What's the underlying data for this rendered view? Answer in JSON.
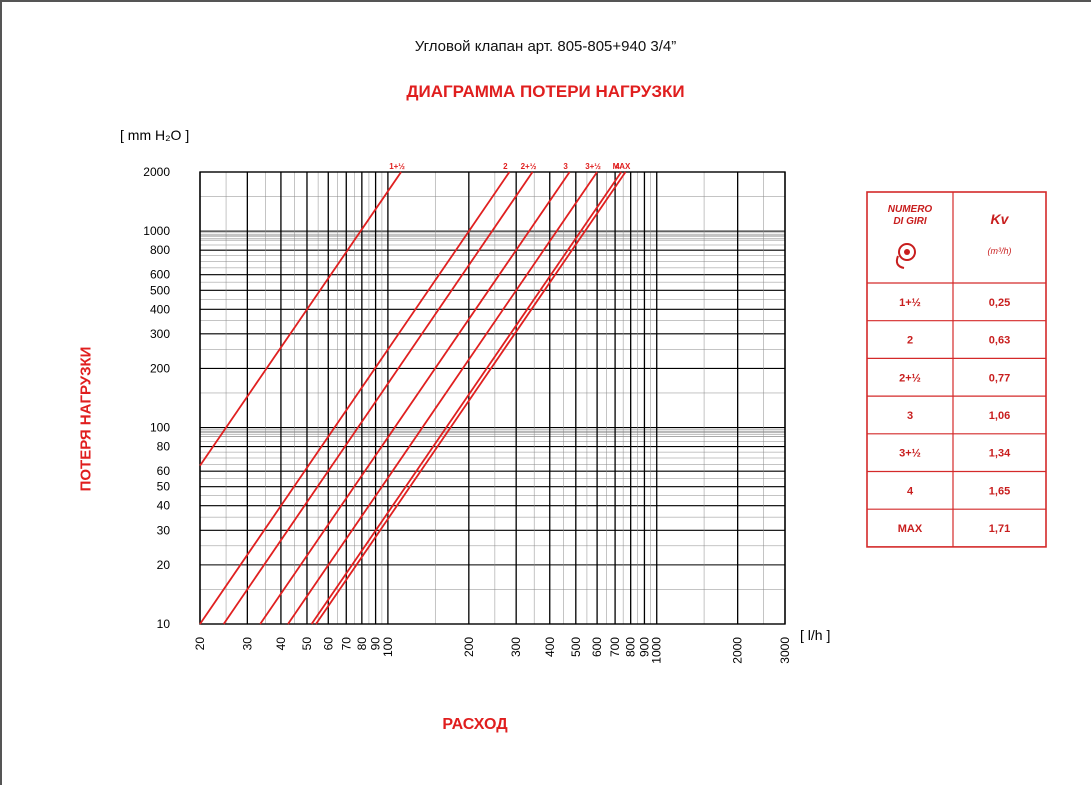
{
  "title": "Угловой клапан арт. 805-805+940 3/4”",
  "subtitle": "ДИАГРАММА ПОТЕРИ НАГРУЗКИ",
  "xlabel": "РАСХОД",
  "ylabel": "ПОТЕРЯ НАГРУЗКИ",
  "colors": {
    "curve": "#e02020",
    "grid": "#000000",
    "table_border": "#d42a2a",
    "table_text": "#c81e1e"
  },
  "chart_data": {
    "type": "line",
    "scale": "log-log",
    "y_unit": "[ mm H₂O ]",
    "x_unit": "[ l/h ]",
    "xlim": [
      20,
      3000
    ],
    "ylim": [
      10,
      2000
    ],
    "x_ticks": [
      "20",
      "30",
      "40",
      "50",
      "60",
      "70",
      "80",
      "90",
      "100",
      "200",
      "300",
      "400",
      "500",
      "600",
      "700",
      "800",
      "900",
      "1000",
      "2000",
      "3000"
    ],
    "y_ticks": [
      "10",
      "20",
      "30",
      "40",
      "50",
      "60",
      "80",
      "100",
      "200",
      "300",
      "400",
      "500",
      "600",
      "800",
      "1000",
      "2000"
    ],
    "series": [
      {
        "name": "1+½",
        "kv": 0.25,
        "points": [
          [
            20,
            64
          ],
          [
            112,
            2000
          ]
        ]
      },
      {
        "name": "2",
        "kv": 0.63,
        "points": [
          [
            20,
            10
          ],
          [
            283,
            2000
          ]
        ]
      },
      {
        "name": "2+½",
        "kv": 0.77,
        "points": [
          [
            24.5,
            10
          ],
          [
            345,
            2000
          ]
        ]
      },
      {
        "name": "3",
        "kv": 1.06,
        "points": [
          [
            33.5,
            10
          ],
          [
            474,
            2000
          ]
        ]
      },
      {
        "name": "3+½",
        "kv": 1.34,
        "points": [
          [
            42.5,
            10
          ],
          [
            600,
            2000
          ]
        ]
      },
      {
        "name": "4",
        "kv": 1.65,
        "points": [
          [
            52,
            10
          ],
          [
            738,
            2000
          ]
        ]
      },
      {
        "name": "MAX",
        "kv": 1.71,
        "points": [
          [
            54,
            10
          ],
          [
            765,
            2000
          ]
        ]
      }
    ],
    "table": {
      "header": {
        "col1": "NUMERO DI GIRI",
        "col2": "Kv",
        "col2_unit": "(m³/h)"
      },
      "rows": [
        {
          "giri": "1+½",
          "kv": "0,25"
        },
        {
          "giri": "2",
          "kv": "0,63"
        },
        {
          "giri": "2+½",
          "kv": "0,77"
        },
        {
          "giri": "3",
          "kv": "1,06"
        },
        {
          "giri": "3+½",
          "kv": "1,34"
        },
        {
          "giri": "4",
          "kv": "1,65"
        },
        {
          "giri": "MAX",
          "kv": "1,71"
        }
      ]
    }
  }
}
